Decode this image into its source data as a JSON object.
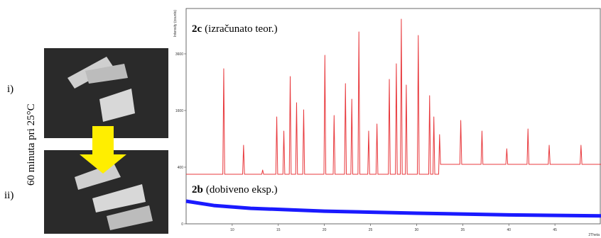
{
  "panel": {
    "label_top": "i)",
    "label_bottom": "ii)",
    "condition": "60 minuta pri 25°C"
  },
  "chart_data": {
    "type": "line",
    "scale": "sqrt",
    "ylabel": "Intensity (counts)",
    "xlabel": "2Theta",
    "xlim": [
      5,
      50
    ],
    "xticks": [
      10,
      15,
      20,
      25,
      30,
      35,
      40,
      45
    ],
    "ylim": [
      0,
      5776
    ],
    "yticks": [
      0,
      400,
      1600,
      3600
    ],
    "series": [
      {
        "name": "2c",
        "note": "(izračunato teor.)",
        "color": "#e8383c",
        "x": [
          5,
          8.98,
          9.08,
          9.18,
          11.13,
          11.23,
          11.33,
          13.2,
          13.3,
          13.4,
          14.73,
          14.83,
          14.93,
          15.5,
          15.6,
          15.7,
          16.19,
          16.29,
          16.39,
          16.88,
          16.98,
          17.08,
          17.65,
          17.75,
          17.85,
          19.95,
          20.05,
          20.15,
          20.95,
          21.05,
          21.15,
          22.18,
          22.28,
          22.38,
          22.87,
          22.97,
          23.07,
          23.64,
          23.74,
          23.84,
          24.7,
          24.8,
          24.9,
          25.6,
          25.7,
          25.8,
          26.94,
          27.04,
          27.14,
          27.7,
          27.8,
          27.9,
          28.24,
          28.34,
          28.44,
          28.78,
          28.88,
          28.98,
          30.08,
          30.18,
          30.28,
          31.31,
          31.41,
          31.51,
          31.77,
          31.87,
          31.97,
          32.39,
          32.49,
          32.59,
          34.69,
          34.79,
          34.89,
          36.99,
          37.09,
          37.19,
          39.68,
          39.78,
          39.88,
          41.98,
          42.08,
          42.18,
          44.28,
          44.38,
          44.48,
          47.73,
          47.83,
          47.93,
          50
        ],
        "values": [
          306,
          306,
          2998,
          306,
          306,
          770,
          306,
          306,
          361,
          306,
          306,
          1425,
          306,
          306,
          1073,
          306,
          306,
          2704,
          306,
          306,
          1828,
          306,
          306,
          1620,
          306,
          306,
          3540,
          306,
          306,
          1463,
          306,
          306,
          2450,
          306,
          306,
          1936,
          306,
          306,
          4590,
          306,
          306,
          1073,
          306,
          306,
          1243,
          306,
          306,
          2601,
          306,
          306,
          3192,
          306,
          306,
          5220,
          306,
          306,
          2401,
          306,
          306,
          4422,
          306,
          306,
          2048,
          306,
          306,
          1425,
          306,
          306,
          992,
          441,
          441,
          1332,
          441,
          441,
          1073,
          441,
          441,
          702,
          441,
          441,
          1122,
          441,
          441,
          770,
          441,
          441,
          770,
          441,
          441
        ]
      },
      {
        "name": "2b",
        "note": "(dobiveno eksp.)",
        "color": "#1a1aff",
        "x": [
          5,
          8,
          12,
          20,
          30,
          40,
          50
        ],
        "values": [
          64,
          42,
          30,
          20,
          14,
          10,
          8
        ]
      }
    ]
  }
}
